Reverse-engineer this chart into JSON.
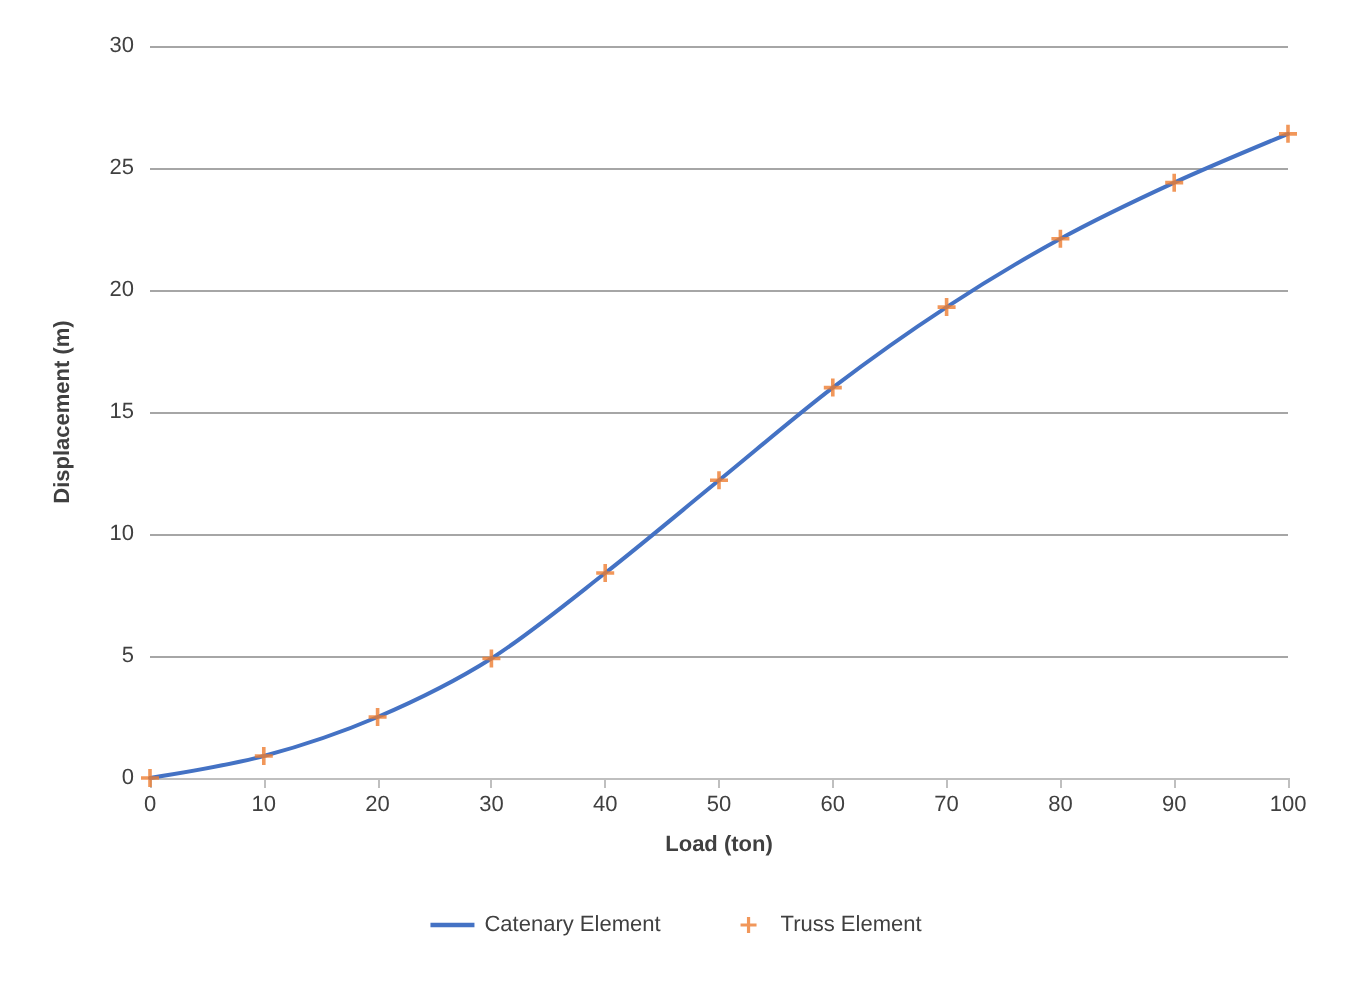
{
  "chart_data": {
    "type": "line",
    "xlabel": "Load (ton)",
    "ylabel": "Displacement (m)",
    "x": [
      0,
      10,
      20,
      30,
      40,
      50,
      60,
      70,
      80,
      90,
      100
    ],
    "series": [
      {
        "name": "Catenary Element",
        "color": "#4472c4",
        "marker": "none",
        "values": [
          0,
          0.9,
          2.5,
          4.9,
          8.4,
          12.2,
          16.0,
          19.3,
          22.1,
          24.4,
          26.4
        ]
      },
      {
        "name": "Truss Element",
        "type": "scatter",
        "color": "#ed7d31",
        "marker": "cross",
        "values": [
          0,
          0.9,
          2.5,
          4.9,
          8.4,
          12.2,
          16.0,
          19.3,
          22.1,
          24.4,
          26.4
        ]
      }
    ],
    "xlim": [
      0,
      100
    ],
    "xticks": [
      0,
      10,
      20,
      30,
      40,
      50,
      60,
      70,
      80,
      90,
      100
    ],
    "ylim": [
      0,
      30
    ],
    "yticks": [
      0,
      5,
      10,
      15,
      20,
      25,
      30
    ],
    "grid": "y",
    "legend": "bottom"
  }
}
